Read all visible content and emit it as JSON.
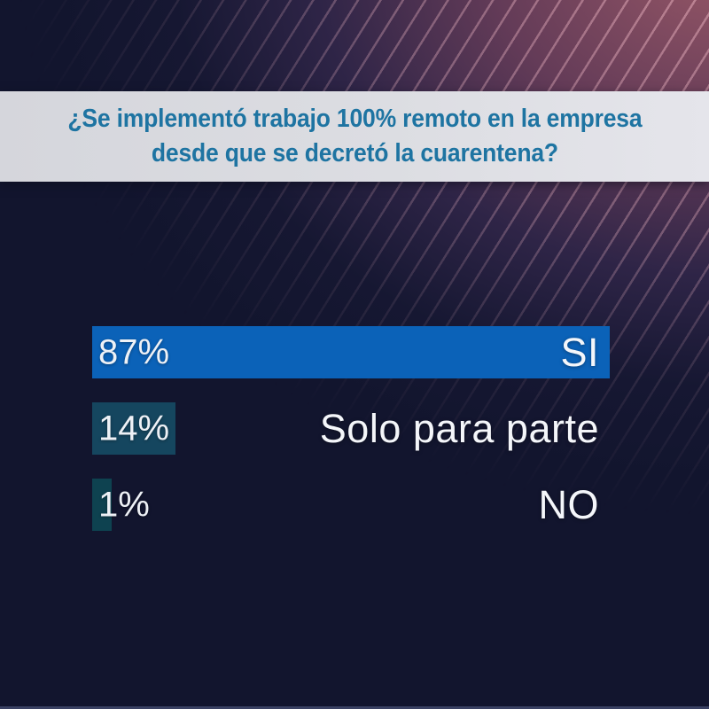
{
  "chart_data": {
    "type": "bar",
    "orientation": "horizontal",
    "title": "¿Se implementó trabajo 100% remoto en la empresa desde que se decretó la cuarentena?",
    "categories": [
      "SI",
      "Solo para parte",
      "NO"
    ],
    "values": [
      87,
      14,
      1
    ],
    "value_labels": [
      "87%",
      "14%",
      "1%"
    ],
    "bar_colors": [
      "#0b62b8",
      "#15465f",
      "#0e4250"
    ],
    "xlim": [
      0,
      87
    ],
    "grid": false,
    "legend": "none"
  },
  "question": {
    "line1": "¿Se implementó trabajo 100% remoto en la empresa",
    "line2": "desde que se decretó la cuarentena?",
    "text_color": "#1e74a2",
    "banner_background": "#dcdde2"
  },
  "background": {
    "base_color": "#12152e",
    "glow_color": "#985867",
    "stripe_color": "#eeb7c4"
  }
}
